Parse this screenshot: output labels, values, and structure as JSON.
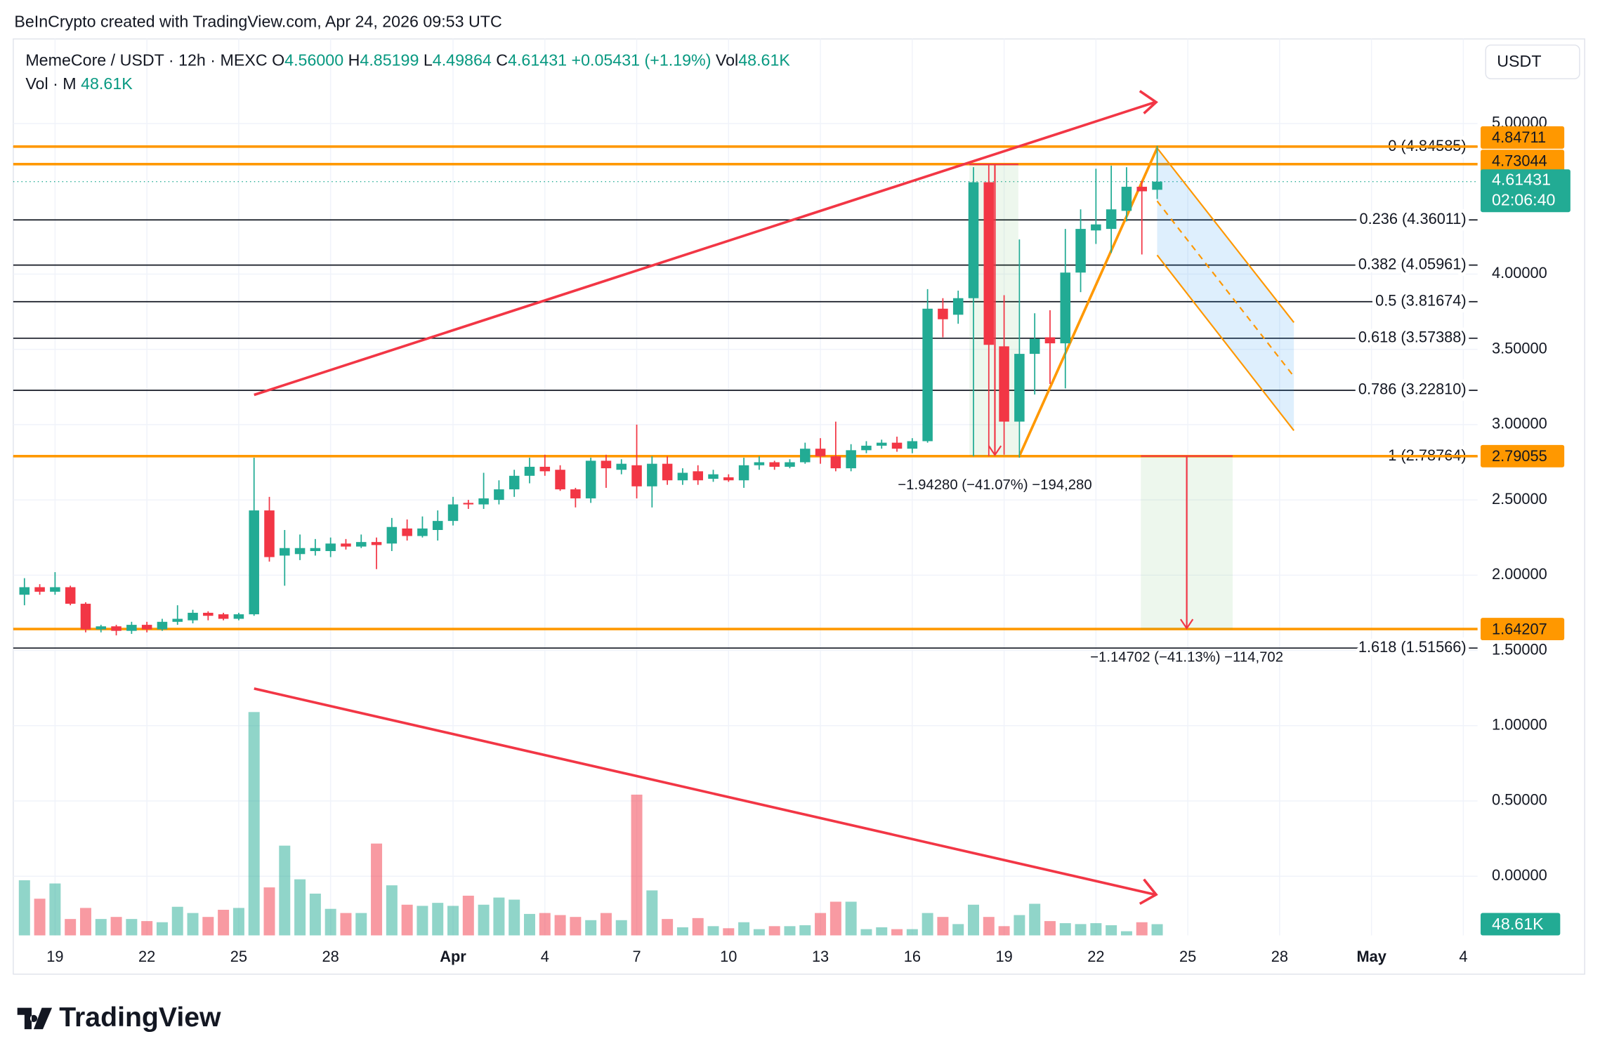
{
  "header": {
    "attribution": "BeInCrypto created with TradingView.com, Apr 24, 2026 09:53 UTC"
  },
  "chart_data": {
    "type": "candlestick",
    "symbol": "MemeCore / USDT · 12h · MEXC",
    "legend_keys": [
      "O",
      "H",
      "L",
      "C",
      "Vol"
    ],
    "open_label": "4.56000",
    "change_label": "+0.05431 (+1.19%)",
    "volume_title": "Vol · M",
    "currency": "USDT",
    "countdown": "02:06:40",
    "up_color": "#22ab94",
    "down_color": "#f23645",
    "open": [
      1.87,
      1.92,
      1.89,
      1.92,
      1.81,
      1.64,
      1.66,
      1.63,
      1.67,
      1.64,
      1.69,
      1.7,
      1.75,
      1.74,
      1.71,
      1.74,
      2.43,
      2.13,
      2.14,
      2.16,
      2.16,
      2.21,
      2.19,
      2.22,
      2.21,
      2.31,
      2.26,
      2.3,
      2.36,
      2.48,
      2.47,
      2.5,
      2.57,
      2.66,
      2.72,
      2.7,
      2.57,
      2.51,
      2.76,
      2.7,
      2.73,
      2.59,
      2.74,
      2.63,
      2.69,
      2.64,
      2.65,
      2.63,
      2.73,
      2.75,
      2.72,
      2.75,
      2.84,
      2.79,
      2.71,
      2.83,
      2.86,
      2.88,
      2.84,
      2.89,
      3.77,
      3.73,
      3.84,
      4.61,
      3.52,
      3.02,
      3.47,
      3.58,
      3.54,
      4.01,
      4.29,
      4.3,
      4.42,
      4.58,
      4.56
    ],
    "high": [
      1.98,
      1.94,
      2.02,
      1.93,
      1.82,
      1.67,
      1.67,
      1.69,
      1.69,
      1.71,
      1.8,
      1.77,
      1.76,
      1.75,
      1.75,
      2.78,
      2.52,
      2.3,
      2.27,
      2.24,
      2.25,
      2.24,
      2.27,
      2.25,
      2.38,
      2.37,
      2.39,
      2.43,
      2.52,
      2.5,
      2.68,
      2.63,
      2.7,
      2.78,
      2.8,
      2.73,
      2.58,
      2.78,
      2.8,
      2.77,
      3.0,
      2.79,
      2.79,
      2.71,
      2.73,
      2.7,
      2.67,
      2.78,
      2.79,
      2.76,
      2.77,
      2.88,
      2.91,
      3.02,
      2.87,
      2.89,
      2.9,
      2.92,
      2.91,
      3.9,
      3.84,
      3.89,
      4.71,
      4.73,
      3.86,
      4.23,
      3.74,
      3.76,
      4.3,
      4.43,
      4.7,
      4.72,
      4.71,
      4.62,
      4.85199
    ],
    "low": [
      1.8,
      1.87,
      1.87,
      1.8,
      1.62,
      1.62,
      1.6,
      1.61,
      1.62,
      1.63,
      1.67,
      1.68,
      1.7,
      1.7,
      1.7,
      1.73,
      2.09,
      1.93,
      2.1,
      2.13,
      2.12,
      2.17,
      2.18,
      2.04,
      2.16,
      2.23,
      2.25,
      2.23,
      2.33,
      2.44,
      2.44,
      2.47,
      2.52,
      2.61,
      2.66,
      2.56,
      2.45,
      2.48,
      2.58,
      2.67,
      2.51,
      2.45,
      2.6,
      2.6,
      2.6,
      2.62,
      2.62,
      2.58,
      2.7,
      2.7,
      2.71,
      2.74,
      2.74,
      2.69,
      2.69,
      2.81,
      2.84,
      2.82,
      2.81,
      2.88,
      3.58,
      3.67,
      2.79,
      2.79,
      2.8,
      2.78,
      3.2,
      3.27,
      3.24,
      3.88,
      4.2,
      4.14,
      4.35,
      4.13,
      4.49864
    ],
    "close": [
      1.92,
      1.89,
      1.92,
      1.81,
      1.64,
      1.66,
      1.63,
      1.67,
      1.64,
      1.69,
      1.71,
      1.75,
      1.73,
      1.71,
      1.74,
      2.43,
      2.12,
      2.18,
      2.18,
      2.18,
      2.21,
      2.19,
      2.22,
      2.2,
      2.32,
      2.26,
      2.31,
      2.36,
      2.47,
      2.47,
      2.51,
      2.57,
      2.66,
      2.72,
      2.69,
      2.57,
      2.51,
      2.76,
      2.71,
      2.74,
      2.59,
      2.74,
      2.63,
      2.68,
      2.63,
      2.67,
      2.63,
      2.73,
      2.75,
      2.72,
      2.75,
      2.84,
      2.79,
      2.71,
      2.83,
      2.86,
      2.88,
      2.84,
      2.89,
      3.77,
      3.7,
      3.84,
      4.61,
      3.53,
      3.02,
      3.47,
      3.57,
      3.54,
      4.01,
      4.3,
      4.33,
      4.43,
      4.58,
      4.55,
      4.61431
    ],
    "volume": {
      "values": [
        239,
        159,
        225,
        71,
        119,
        71,
        80,
        71,
        62,
        57,
        124,
        97,
        80,
        111,
        119,
        968,
        208,
        389,
        243,
        181,
        115,
        97,
        97,
        398,
        217,
        133,
        128,
        141,
        128,
        172,
        133,
        164,
        155,
        93,
        97,
        88,
        80,
        66,
        97,
        66,
        610,
        195,
        71,
        35,
        75,
        40,
        31,
        57,
        27,
        40,
        40,
        44,
        97,
        146,
        146,
        27,
        35,
        27,
        27,
        97,
        80,
        49,
        133,
        80,
        40,
        88,
        137,
        62,
        53,
        49,
        53,
        44,
        18,
        57,
        48.61
      ],
      "value_labels": [
        null,
        null,
        null,
        null,
        null,
        null,
        null,
        null,
        null,
        null,
        null,
        null,
        null,
        null,
        null,
        null,
        null,
        null,
        null,
        null,
        null,
        null,
        null,
        null,
        null,
        null,
        null,
        null,
        null,
        null,
        null,
        null,
        null,
        null,
        null,
        null,
        null,
        null,
        null,
        null,
        null,
        null,
        null,
        null,
        null,
        null,
        null,
        null,
        null,
        null,
        null,
        null,
        null,
        null,
        null,
        null,
        null,
        null,
        null,
        null,
        null,
        null,
        null,
        null,
        null,
        null,
        null,
        null,
        null,
        null,
        null,
        null,
        null,
        null,
        "48.61K"
      ]
    },
    "xlim": [
      -0.73,
      94.93
    ],
    "xticks": [
      {
        "value": 2,
        "label": "19"
      },
      {
        "value": 8,
        "label": "22"
      },
      {
        "value": 14,
        "label": "25"
      },
      {
        "value": 20,
        "label": "28"
      },
      {
        "value": 28,
        "label": "Apr"
      },
      {
        "value": 34,
        "label": "4"
      },
      {
        "value": 40,
        "label": "7"
      },
      {
        "value": 46,
        "label": "10"
      },
      {
        "value": 52,
        "label": "13"
      },
      {
        "value": 58,
        "label": "16"
      },
      {
        "value": 64,
        "label": "19"
      },
      {
        "value": 70,
        "label": "22"
      },
      {
        "value": 76,
        "label": "25"
      },
      {
        "value": 82,
        "label": "28"
      },
      {
        "value": 88,
        "label": "May"
      },
      {
        "value": 94,
        "label": "4"
      }
    ],
    "ylim": [
      -0.393,
      5.562
    ],
    "yticks": [
      {
        "value": 0,
        "label": "0.00000"
      },
      {
        "value": 0.5,
        "label": "0.50000"
      },
      {
        "value": 1,
        "label": "1.00000"
      },
      {
        "value": 1.5,
        "label": "1.50000"
      },
      {
        "value": 2,
        "label": "2.00000"
      },
      {
        "value": 2.5,
        "label": "2.50000"
      },
      {
        "value": 3,
        "label": "3.00000"
      },
      {
        "value": 3.5,
        "label": "3.50000"
      },
      {
        "value": 4,
        "label": "4.00000"
      },
      {
        "value": 5,
        "label": "5.00000"
      }
    ],
    "grid": true,
    "fib_levels": [
      {
        "value": 4.84585,
        "label": "0 (4.84585)"
      },
      {
        "value": 4.36011,
        "label": "0.236 (4.36011)"
      },
      {
        "value": 4.05961,
        "label": "0.382 (4.05961)"
      },
      {
        "value": 3.81674,
        "label": "0.5 (3.81674)"
      },
      {
        "value": 3.57388,
        "label": "0.618 (3.57388)"
      },
      {
        "value": 3.2281,
        "label": "0.786 (3.22810)"
      },
      {
        "value": 2.78764,
        "label": "1 (2.78764)"
      },
      {
        "value": 1.51566,
        "label": "1.618 (1.51566)"
      }
    ],
    "price_lines": [
      {
        "value": 4.84711,
        "color": "#ff9800"
      },
      {
        "value": 4.73044,
        "color": "#ff9800"
      },
      {
        "value": 2.79055,
        "color": "#ff9800"
      },
      {
        "value": 1.64207,
        "color": "#ff9800"
      }
    ],
    "measurements": [
      "−1.94280 (−41.07%) −194,280",
      "−1.14702 (−41.13%) −114,702"
    ]
  },
  "footer": {
    "logo": "TradingView"
  }
}
